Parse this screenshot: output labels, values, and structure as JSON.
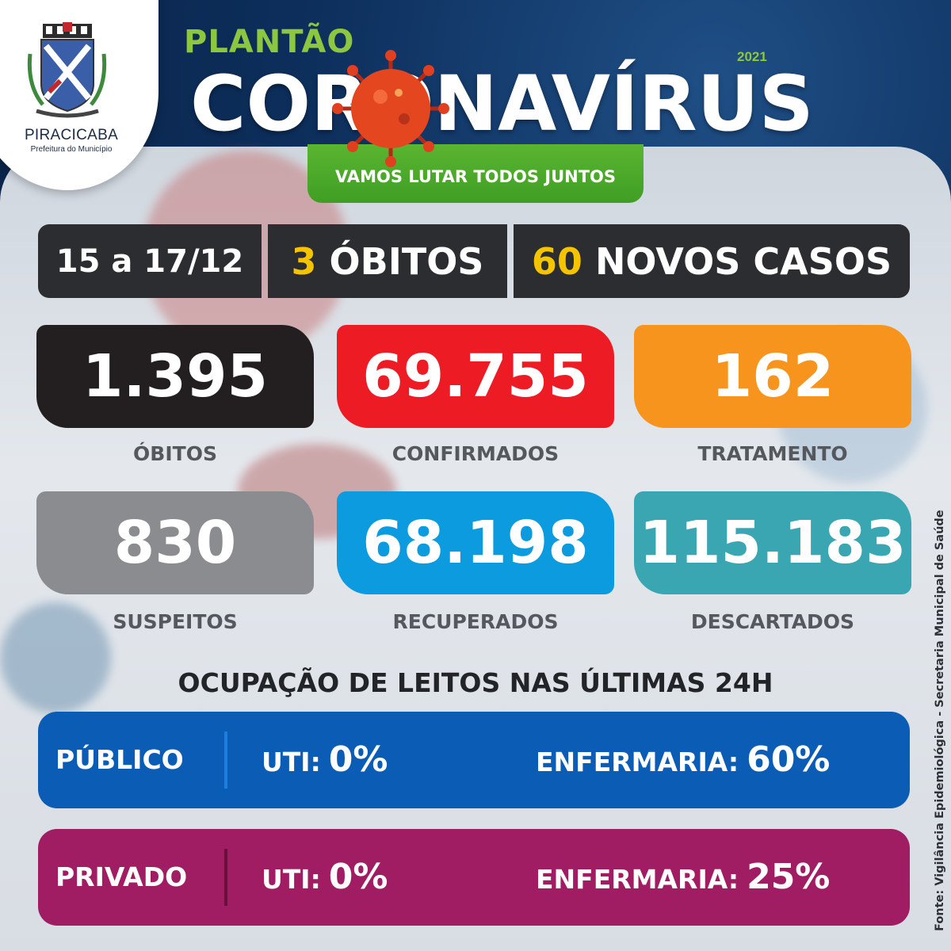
{
  "header": {
    "city": "PIRACICABA",
    "city_subtitle": "Prefeitura do Município",
    "plantao": "PLANTÃO",
    "year": "2021",
    "title": "CORONAVÍRUS",
    "slogan": "VAMOS LUTAR TODOS JUNTOS"
  },
  "strip": {
    "period": "15 a 17/12",
    "deaths_count": "3",
    "deaths_label": "ÓBITOS",
    "new_cases_count": "60",
    "new_cases_label": "NOVOS CASOS"
  },
  "stats": [
    {
      "value": "1.395",
      "label": "ÓBITOS",
      "color": "#231f20"
    },
    {
      "value": "69.755",
      "label": "CONFIRMADOS",
      "color": "#ed1c24"
    },
    {
      "value": "162",
      "label": "TRATAMENTO",
      "color": "#f7941d"
    },
    {
      "value": "830",
      "label": "SUSPEITOS",
      "color": "#8a8c8f"
    },
    {
      "value": "68.198",
      "label": "RECUPERADOS",
      "color": "#0d9be0"
    },
    {
      "value": "115.183",
      "label": "DESCARTADOS",
      "color": "#3aa6b2"
    }
  ],
  "beds": {
    "title": "OCUPAÇÃO DE LEITOS NAS ÚLTIMAS 24H",
    "rows": [
      {
        "type": "PÚBLICO",
        "uti_label": "UTI:",
        "uti_value": "0%",
        "enf_label": "ENFERMARIA:",
        "enf_value": "60%",
        "color": "#0b5cb5",
        "sep_color": "#1e7ee0"
      },
      {
        "type": "PRIVADO",
        "uti_label": "UTI:",
        "uti_value": "0%",
        "enf_label": "ENFERMARIA:",
        "enf_value": "25%",
        "color": "#a01c63",
        "sep_color": "#6b0f3d"
      }
    ]
  },
  "source": "Fonte: Vigilância Epidemiológica - Secretaria Municipal de Saúde"
}
